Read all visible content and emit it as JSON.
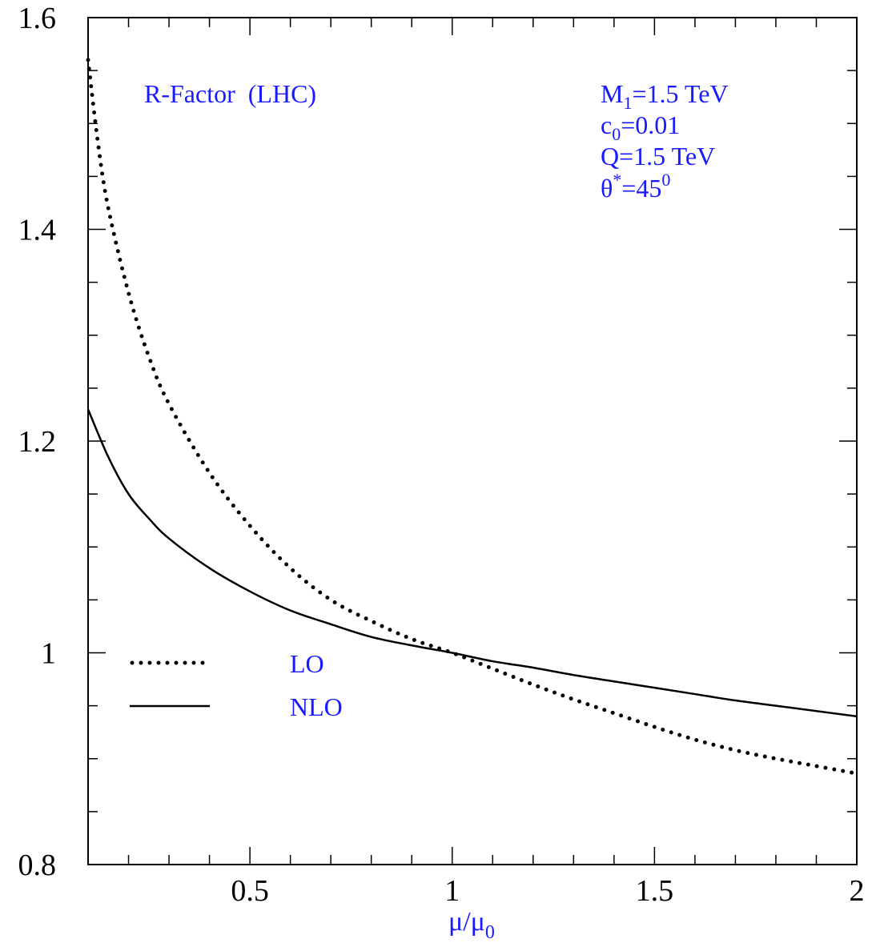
{
  "chart_data": {
    "type": "line",
    "title": "R-Factor (LHC)",
    "xlabel": "μ/μ",
    "xlabel_sub": "0",
    "ylabel": "",
    "xlim": [
      0.1,
      2.0
    ],
    "ylim": [
      0.8,
      1.6
    ],
    "x_ticks": [
      0.5,
      1,
      1.5,
      2
    ],
    "x_tick_labels": [
      "0.5",
      "1",
      "1.5",
      "2"
    ],
    "y_ticks": [
      0.8,
      1,
      1.2,
      1.4,
      1.6
    ],
    "y_tick_labels": [
      "0.8",
      "1",
      "1.2",
      "1.4",
      "1.6"
    ],
    "grid": false,
    "legend_position": "center-left",
    "series": [
      {
        "name": "LO",
        "style": "dotted",
        "color": "#000000",
        "x": [
          0.1,
          0.125,
          0.15,
          0.2,
          0.25,
          0.3,
          0.4,
          0.5,
          0.6,
          0.7,
          0.8,
          0.9,
          1.0,
          1.1,
          1.2,
          1.3,
          1.4,
          1.5,
          1.6,
          1.7,
          1.8,
          1.9,
          2.0
        ],
        "y": [
          1.56,
          1.48,
          1.42,
          1.34,
          1.28,
          1.235,
          1.17,
          1.12,
          1.08,
          1.05,
          1.03,
          1.013,
          1.0,
          0.985,
          0.97,
          0.956,
          0.943,
          0.93,
          0.918,
          0.908,
          0.9,
          0.893,
          0.886
        ]
      },
      {
        "name": "NLO",
        "style": "solid",
        "color": "#000000",
        "x": [
          0.1,
          0.15,
          0.2,
          0.25,
          0.3,
          0.4,
          0.5,
          0.6,
          0.7,
          0.8,
          0.9,
          1.0,
          1.1,
          1.2,
          1.3,
          1.4,
          1.5,
          1.6,
          1.7,
          1.8,
          1.9,
          2.0
        ],
        "y": [
          1.23,
          1.185,
          1.15,
          1.127,
          1.108,
          1.08,
          1.058,
          1.04,
          1.027,
          1.015,
          1.007,
          1.0,
          0.992,
          0.986,
          0.979,
          0.973,
          0.967,
          0.961,
          0.955,
          0.95,
          0.945,
          0.94
        ]
      }
    ],
    "annotations": {
      "title": "R-Factor  (LHC)",
      "params": [
        {
          "main": "M",
          "sub": "1",
          "rest": "=1.5 TeV"
        },
        {
          "main": "c",
          "sub": "0",
          "rest": "=0.01"
        },
        {
          "main": "Q=1.5 TeV",
          "sub": "",
          "rest": ""
        },
        {
          "main": "θ",
          "sup": "*",
          "rest": "=45",
          "sup2": "0"
        }
      ]
    },
    "text_color": "#1a1aff"
  }
}
